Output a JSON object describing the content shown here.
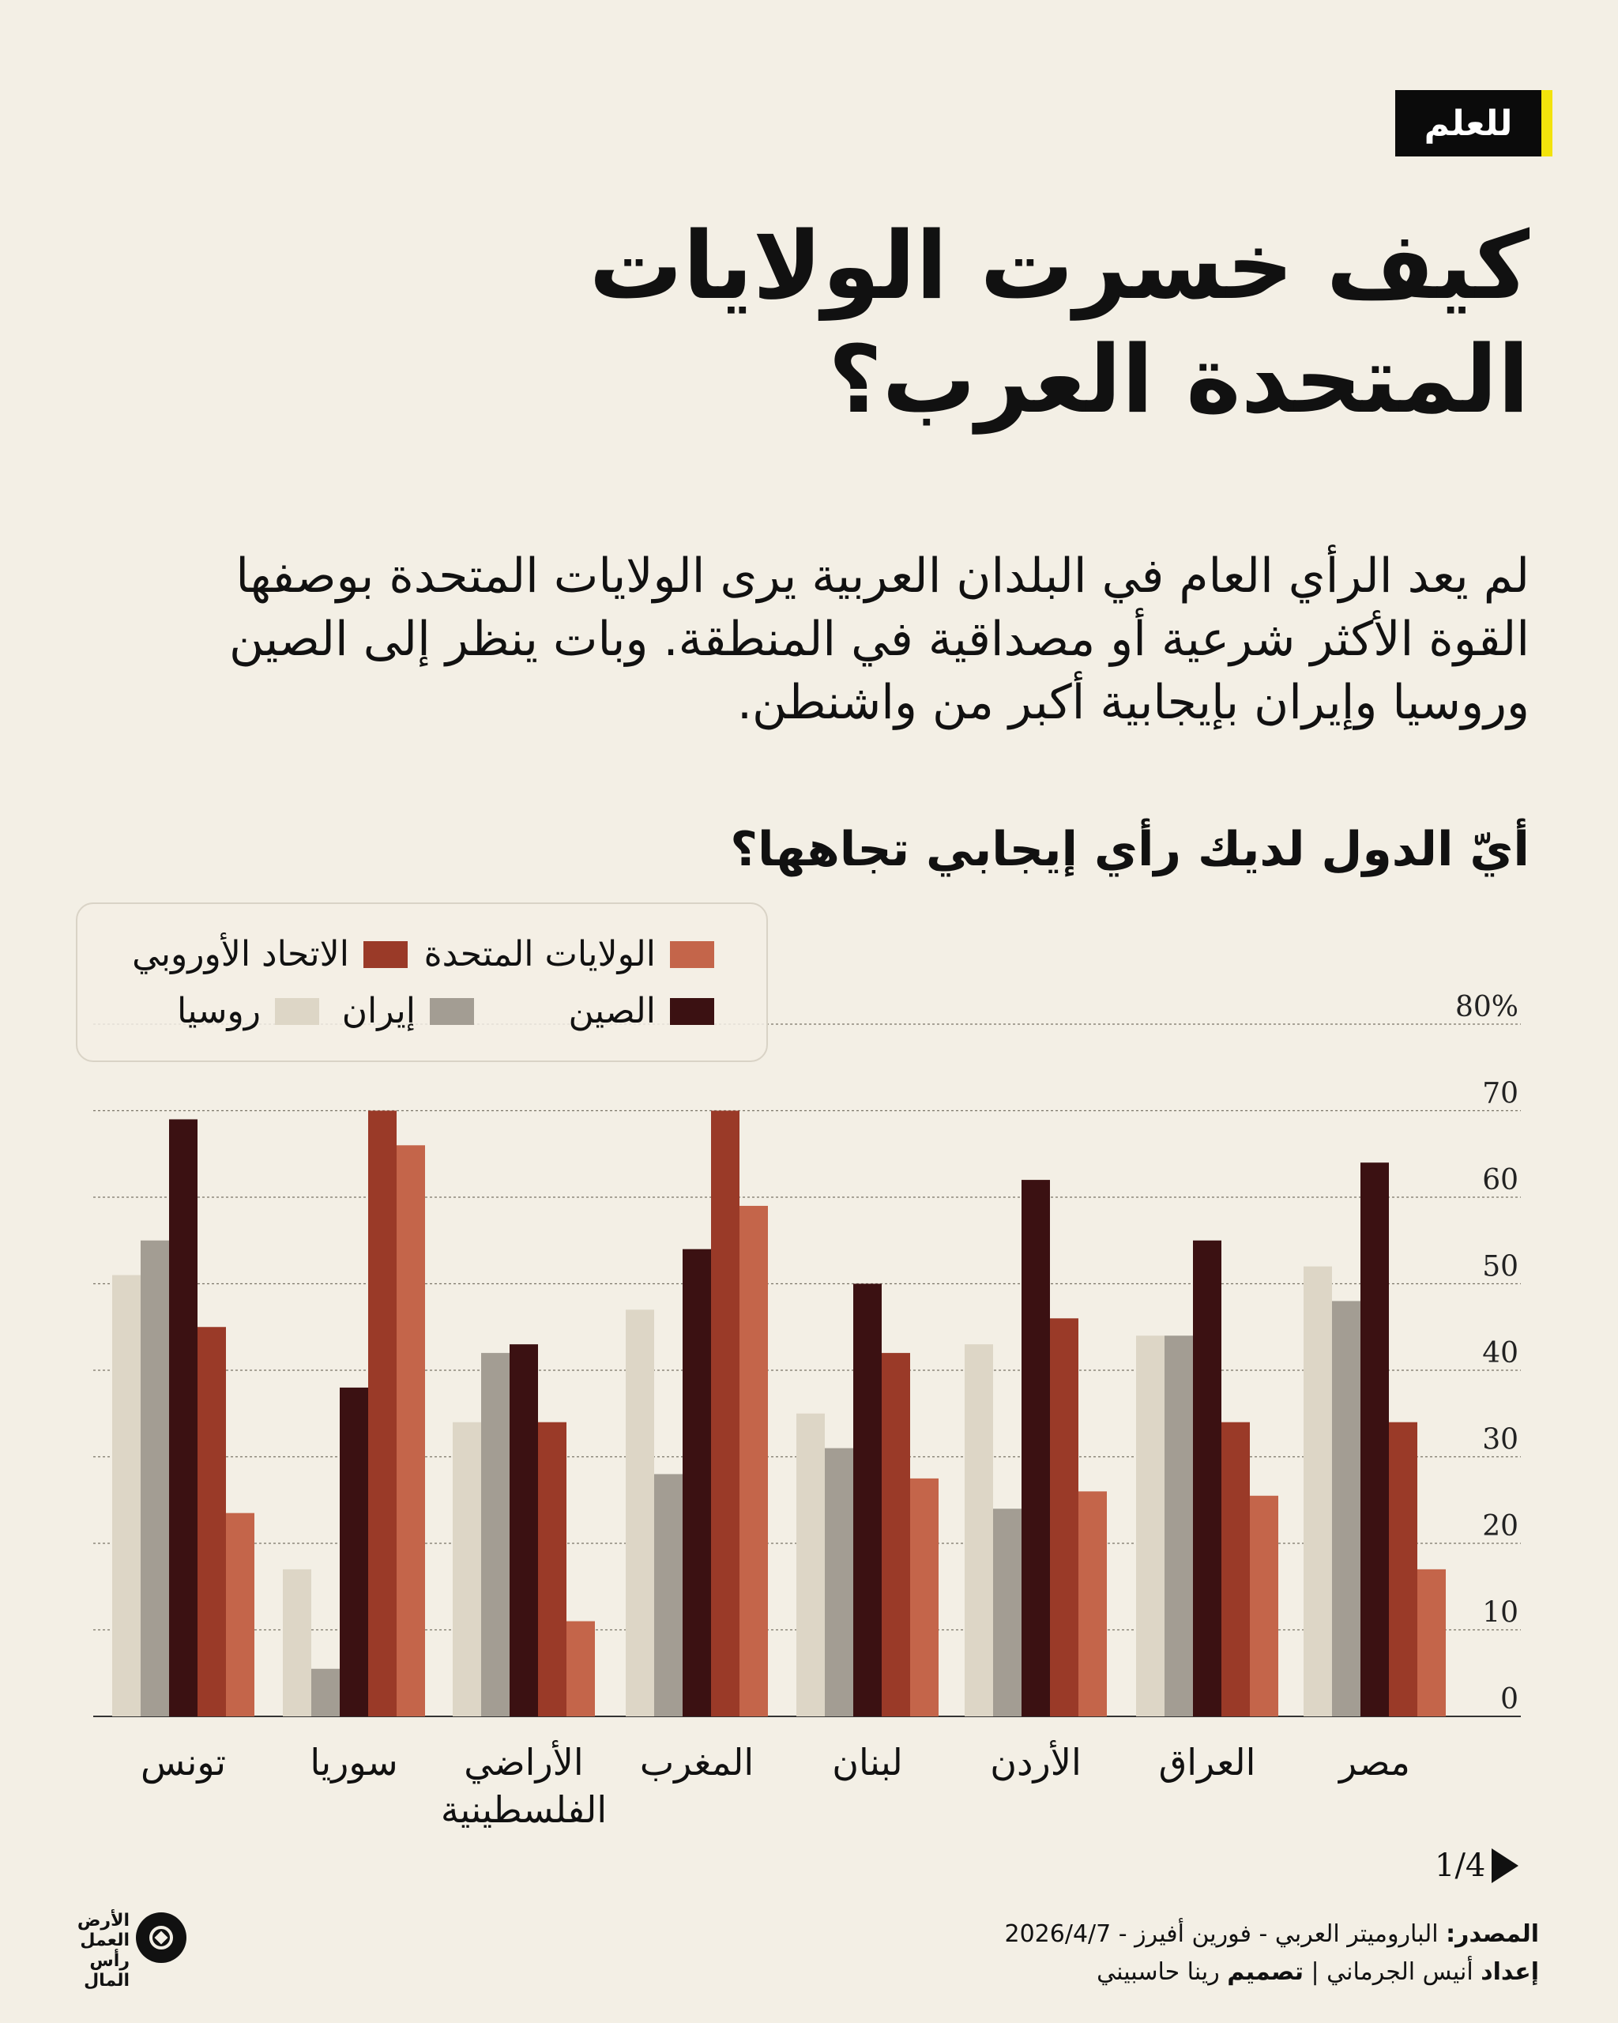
{
  "badge": "للعلم",
  "title_line1": "كيف خسرت الولايات",
  "title_line2": "المتحدة العرب؟",
  "intro": "لم يعد الرأي العام في البلدان العربية يرى الولايات المتحدة بوصفها القوة الأكثر شرعية أو مصداقية في المنطقة. وبات ينظر إلى الصين وروسيا وإيران بإيجابية أكبر من واشنطن.",
  "question": "أيّ الدول لديك رأي إيجابي تجاهها؟",
  "page_indicator": "1/4",
  "source_label": "المصدر:",
  "source_text": "الباروميتر العربي - فورين أفيرز - 2026/4/7",
  "credits_label": "إعداد",
  "credits_author": "أنيس الجرماني",
  "credits_design_label": "تصميم",
  "credits_designer": "رينا حاسبيني",
  "logo_text": "الأرض العمل رأس المال",
  "colors": {
    "russia": "#ddd6c6",
    "iran": "#a39d93",
    "china": "#3b1112",
    "eu": "#9a3a28",
    "usa": "#c4654a"
  },
  "chart_data": {
    "type": "bar",
    "categories": [
      "تونس",
      "سوريا",
      "الأراضي الفلسطينية",
      "المغرب",
      "لبنان",
      "الأردن",
      "العراق",
      "مصر"
    ],
    "series": [
      {
        "key": "russia",
        "name": "روسيا",
        "values": [
          51,
          17,
          34,
          47,
          35,
          43,
          44,
          52
        ]
      },
      {
        "key": "iran",
        "name": "إيران",
        "values": [
          55,
          5.5,
          42,
          28,
          31,
          24,
          44,
          48
        ]
      },
      {
        "key": "china",
        "name": "الصين",
        "values": [
          69,
          38,
          43,
          54,
          50,
          62,
          55,
          64
        ]
      },
      {
        "key": "eu",
        "name": "الاتحاد الأوروبي",
        "values": [
          45,
          70,
          34,
          70,
          42,
          46,
          34,
          34
        ]
      },
      {
        "key": "usa",
        "name": "الولايات المتحدة",
        "values": [
          23.5,
          66,
          11,
          59,
          27.5,
          26,
          25.5,
          17
        ]
      }
    ],
    "yticks": [
      "0",
      "10",
      "20",
      "30",
      "40",
      "50",
      "60",
      "70",
      "80%"
    ],
    "ylim": [
      0,
      80
    ],
    "grid": true,
    "legend_position": "top-left"
  }
}
